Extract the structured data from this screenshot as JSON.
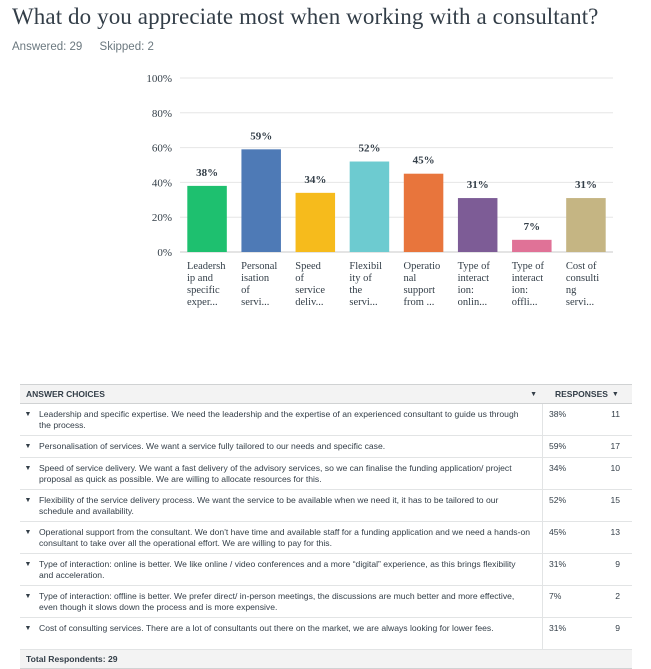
{
  "question": {
    "title": "What do you appreciate most when working with a consultant?",
    "answered": "Answered: 29",
    "skipped": "Skipped: 2"
  },
  "chart_data": {
    "type": "bar",
    "ylim": [
      0,
      100
    ],
    "y_ticks": [
      "0%",
      "20%",
      "40%",
      "60%",
      "80%",
      "100%"
    ],
    "categories": [
      [
        "Leadersh",
        "ip and",
        "specific",
        "exper..."
      ],
      [
        "Personal",
        "isation",
        "of",
        "servi..."
      ],
      [
        "Speed",
        "of",
        "service",
        "deliv..."
      ],
      [
        "Flexibil",
        "ity of",
        "the",
        "servi..."
      ],
      [
        "Operatio",
        "nal",
        "support",
        "from ..."
      ],
      [
        "Type of",
        "interact",
        "ion:",
        "onlin..."
      ],
      [
        "Type of",
        "interact",
        "ion:",
        "offli..."
      ],
      [
        "Cost of",
        "consulti",
        "ng",
        "servi..."
      ]
    ],
    "values": [
      38,
      59,
      34,
      52,
      45,
      31,
      7,
      31
    ],
    "labels": [
      "38%",
      "59%",
      "34%",
      "52%",
      "45%",
      "31%",
      "7%",
      "31%"
    ],
    "colors": [
      "#1ec06f",
      "#4e7ab6",
      "#f6bb1c",
      "#6dcbd0",
      "#e8753c",
      "#7d5c96",
      "#e07297",
      "#c5b583"
    ]
  },
  "table": {
    "header_choices": "ANSWER CHOICES",
    "header_responses": "RESPONSES",
    "rows": [
      {
        "text": "Leadership and specific expertise. We need the leadership and the expertise of an experienced consultant to guide us through the process.",
        "pct": "38%",
        "count": "11"
      },
      {
        "text": "Personalisation of services. We want a service fully tailored to our needs and specific case.",
        "pct": "59%",
        "count": "17"
      },
      {
        "text": "Speed of service delivery. We want a fast delivery of the advisory services, so we can finalise the funding application/ project proposal as quick as possible. We are willing to allocate resources for this.",
        "pct": "34%",
        "count": "10"
      },
      {
        "text": "Flexibility of the service delivery process. We want the service to be available when we need it, it has to be tailored to our schedule and availability.",
        "pct": "52%",
        "count": "15"
      },
      {
        "text": "Operational support from the consultant. We don't have time and available staff for a funding application and we need a hands-on consultant to take over all the operational effort. We are willing to pay for this.",
        "pct": "45%",
        "count": "13"
      },
      {
        "text": "Type of interaction: online is better. We like online / video conferences and a more “digital” experience, as this brings flexibility and  acceleration.",
        "pct": "31%",
        "count": "9"
      },
      {
        "text": "Type of interaction: offline is better. We prefer direct/ in-person meetings, the discussions are much better and more effective, even though it slows down the process and is more expensive.",
        "pct": "7%",
        "count": "2"
      },
      {
        "text": "Cost of consulting services. There are a lot of consultants out there on the market, we are always looking for lower fees.",
        "pct": "31%",
        "count": "9"
      }
    ],
    "footer": "Total Respondents: 29"
  }
}
